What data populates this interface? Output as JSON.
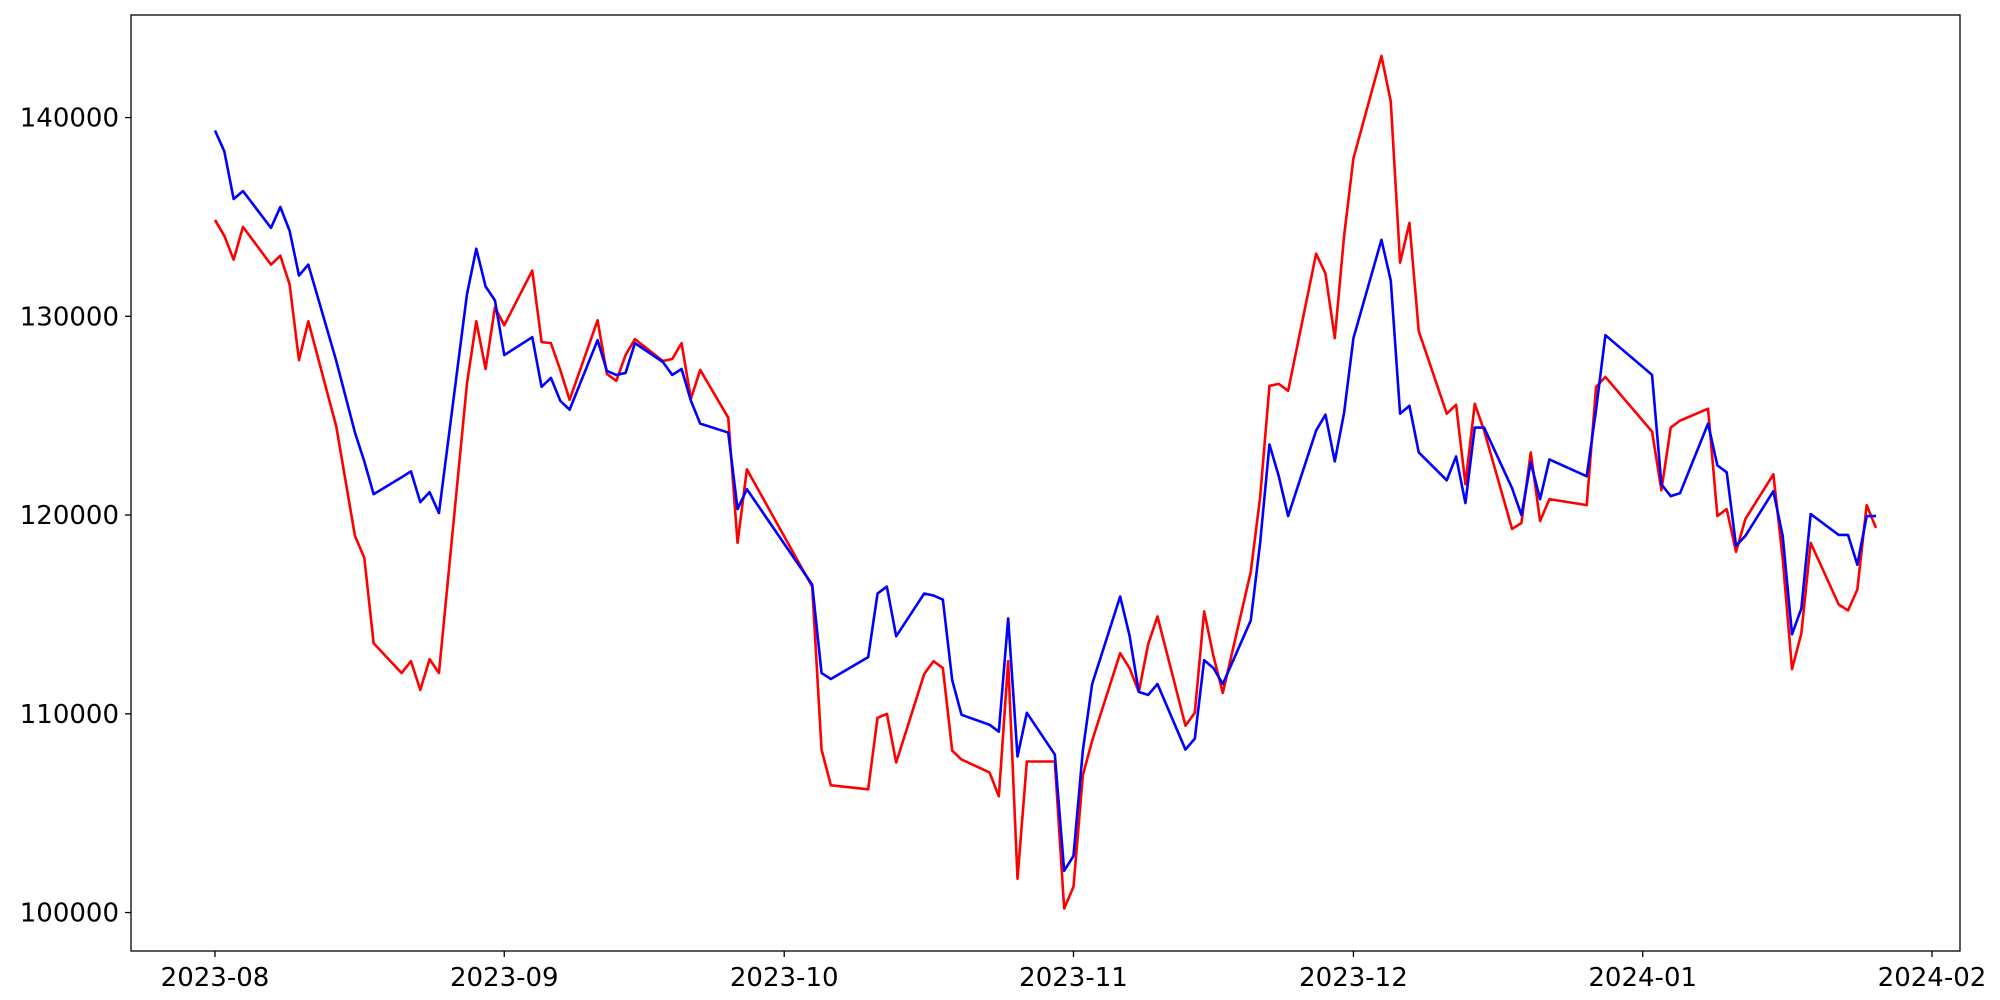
{
  "chart_data": {
    "type": "line",
    "x": [
      "2023-08-01",
      "2023-08-02",
      "2023-08-03",
      "2023-08-04",
      "2023-08-07",
      "2023-08-08",
      "2023-08-09",
      "2023-08-10",
      "2023-08-11",
      "2023-08-14",
      "2023-08-16",
      "2023-08-17",
      "2023-08-18",
      "2023-08-21",
      "2023-08-22",
      "2023-08-23",
      "2023-08-24",
      "2023-08-25",
      "2023-08-28",
      "2023-08-29",
      "2023-08-30",
      "2023-08-31",
      "2023-09-01",
      "2023-09-04",
      "2023-09-05",
      "2023-09-06",
      "2023-09-07",
      "2023-09-08",
      "2023-09-11",
      "2023-09-12",
      "2023-09-13",
      "2023-09-14",
      "2023-09-15",
      "2023-09-18",
      "2023-09-19",
      "2023-09-20",
      "2023-09-21",
      "2023-09-22",
      "2023-09-25",
      "2023-09-26",
      "2023-09-27",
      "2023-10-04",
      "2023-10-05",
      "2023-10-06",
      "2023-10-10",
      "2023-10-11",
      "2023-10-12",
      "2023-10-13",
      "2023-10-16",
      "2023-10-17",
      "2023-10-18",
      "2023-10-19",
      "2023-10-20",
      "2023-10-23",
      "2023-10-24",
      "2023-10-25",
      "2023-10-26",
      "2023-10-27",
      "2023-10-30",
      "2023-10-31",
      "2023-11-01",
      "2023-11-02",
      "2023-11-03",
      "2023-11-06",
      "2023-11-07",
      "2023-11-08",
      "2023-11-09",
      "2023-11-10",
      "2023-11-13",
      "2023-11-14",
      "2023-11-15",
      "2023-11-16",
      "2023-11-17",
      "2023-11-20",
      "2023-11-21",
      "2023-11-22",
      "2023-11-23",
      "2023-11-24",
      "2023-11-27",
      "2023-11-28",
      "2023-11-29",
      "2023-11-30",
      "2023-12-01",
      "2023-12-04",
      "2023-12-05",
      "2023-12-06",
      "2023-12-07",
      "2023-12-08",
      "2023-12-11",
      "2023-12-12",
      "2023-12-13",
      "2023-12-14",
      "2023-12-15",
      "2023-12-18",
      "2023-12-19",
      "2023-12-20",
      "2023-12-21",
      "2023-12-22",
      "2023-12-26",
      "2023-12-27",
      "2023-12-28",
      "2024-01-02",
      "2024-01-03",
      "2024-01-04",
      "2024-01-05",
      "2024-01-08",
      "2024-01-09",
      "2024-01-10",
      "2024-01-11",
      "2024-01-12",
      "2024-01-15",
      "2024-01-16",
      "2024-01-17",
      "2024-01-18",
      "2024-01-19",
      "2024-01-22",
      "2024-01-23",
      "2024-01-24",
      "2024-01-25",
      "2024-01-26"
    ],
    "series": [
      {
        "color": "#ff0000",
        "values": [
          134850,
          134050,
          132850,
          134500,
          132600,
          133050,
          131600,
          127800,
          129750,
          124450,
          118950,
          117850,
          113550,
          112050,
          112650,
          111200,
          112750,
          112050,
          126600,
          129750,
          127350,
          130450,
          129550,
          132300,
          128700,
          128650,
          127300,
          125800,
          129800,
          127100,
          126750,
          128050,
          128850,
          127750,
          127850,
          128650,
          125850,
          127300,
          124900,
          118600,
          122300,
          116400,
          108200,
          106400,
          106200,
          109800,
          110000,
          107550,
          112000,
          112650,
          112300,
          108150,
          107700,
          107050,
          105850,
          112650,
          101700,
          107600,
          107600,
          100200,
          101300,
          106900,
          108650,
          113050,
          112300,
          111100,
          113500,
          114900,
          109400,
          110050,
          115150,
          112900,
          111050,
          117150,
          120900,
          126500,
          126600,
          126250,
          133150,
          132150,
          128900,
          134050,
          137950,
          143100,
          140800,
          132700,
          134700,
          129250,
          125100,
          125550,
          121550,
          125600,
          124250,
          119300,
          119600,
          123150,
          119700,
          120800,
          120500,
          126450,
          126950,
          124200,
          121250,
          124400,
          124750,
          125350,
          119950,
          120300,
          118150,
          119800,
          122050,
          117800,
          112250,
          114050,
          118600,
          115500,
          115200,
          116250,
          120500,
          119350
        ]
      },
      {
        "color": "#0000ff",
        "values": [
          139350,
          138300,
          135900,
          136300,
          134450,
          135500,
          134300,
          132050,
          132600,
          127750,
          124150,
          122700,
          121050,
          121900,
          122200,
          120650,
          121150,
          120100,
          131100,
          133400,
          131500,
          130800,
          128050,
          128950,
          126450,
          126900,
          125750,
          125300,
          128800,
          127250,
          127050,
          127150,
          128650,
          127700,
          127050,
          127350,
          125750,
          124600,
          124150,
          120300,
          121300,
          116500,
          112050,
          111750,
          112850,
          116050,
          116400,
          113900,
          116050,
          115950,
          115750,
          111700,
          109950,
          109450,
          109100,
          114800,
          107850,
          110050,
          107950,
          102100,
          102850,
          108150,
          111500,
          115900,
          113950,
          111100,
          110950,
          111500,
          108200,
          108750,
          112700,
          112300,
          111500,
          114700,
          118600,
          123550,
          121950,
          119950,
          124250,
          125050,
          122700,
          125150,
          128900,
          133850,
          131800,
          125100,
          125500,
          123150,
          121750,
          122950,
          120600,
          124400,
          124400,
          121350,
          120000,
          122650,
          120800,
          122800,
          121950,
          125300,
          129050,
          127050,
          121550,
          120950,
          121100,
          124600,
          122500,
          122150,
          118450,
          118950,
          121200,
          118950,
          114000,
          115300,
          120050,
          119000,
          119000,
          117500,
          119950,
          119950
        ]
      }
    ],
    "xlim": [
      "2023-07-23",
      "2024-02-04"
    ],
    "xticks": [
      {
        "value": "2023-08-01",
        "label": "2023-08"
      },
      {
        "value": "2023-09-01",
        "label": "2023-09"
      },
      {
        "value": "2023-10-01",
        "label": "2023-10"
      },
      {
        "value": "2023-11-01",
        "label": "2023-11"
      },
      {
        "value": "2023-12-01",
        "label": "2023-12"
      },
      {
        "value": "2024-01-01",
        "label": "2024-01"
      },
      {
        "value": "2024-02-01",
        "label": "2024-02"
      }
    ],
    "ylim": [
      98065,
      145160
    ],
    "yticks": [
      100000,
      110000,
      120000,
      130000,
      140000
    ]
  }
}
